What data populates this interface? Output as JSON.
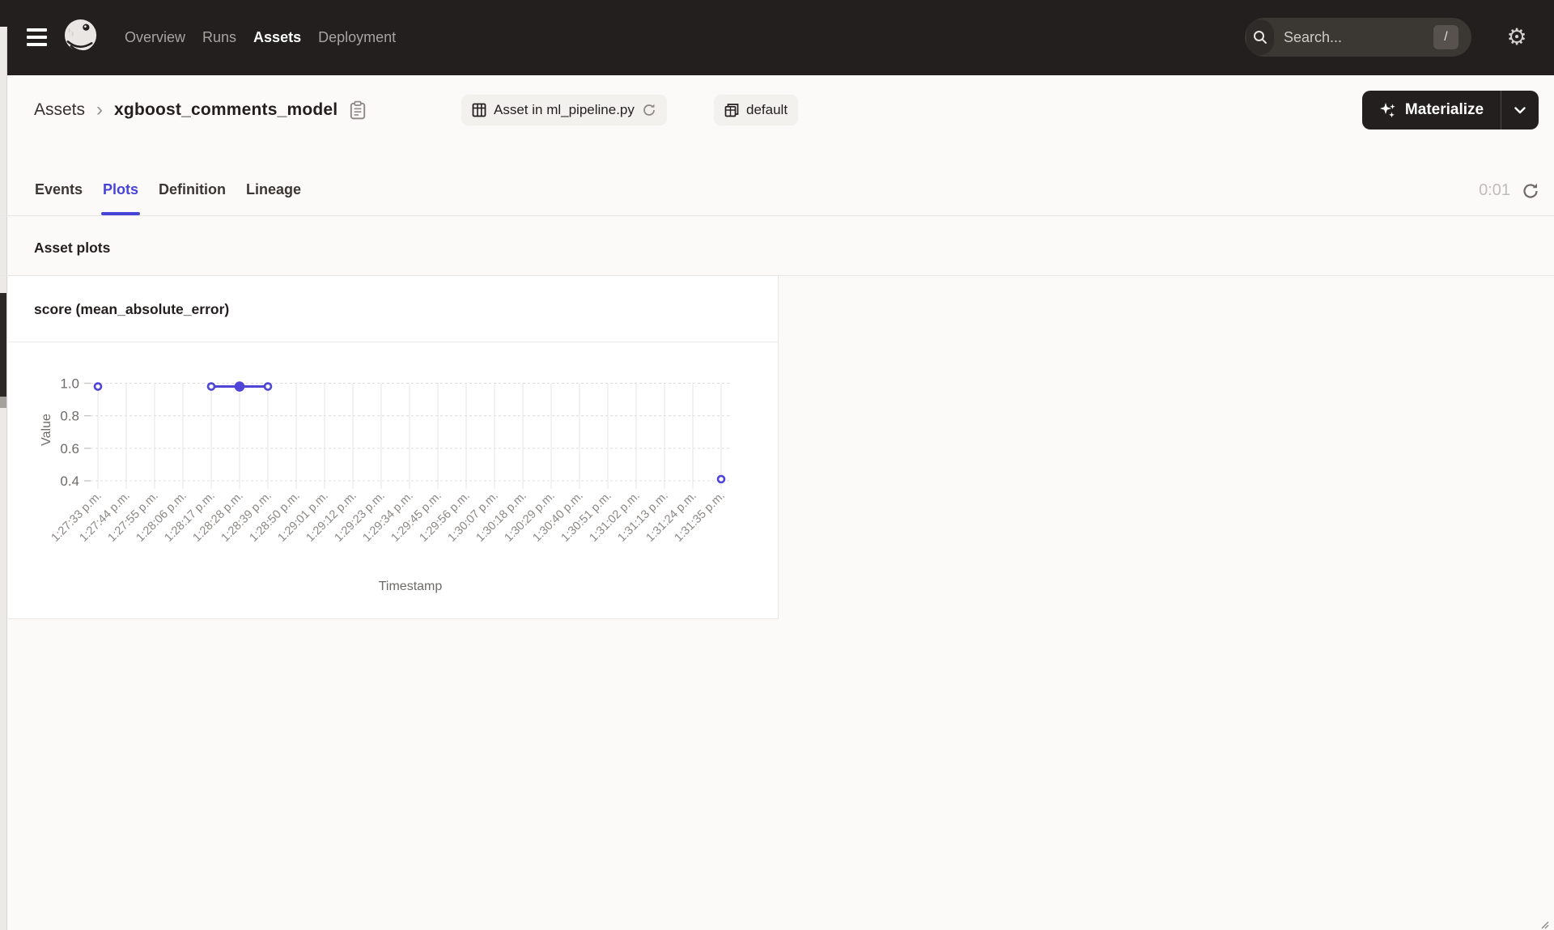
{
  "nav": {
    "items": [
      {
        "label": "Overview",
        "active": false
      },
      {
        "label": "Runs",
        "active": false
      },
      {
        "label": "Assets",
        "active": true
      },
      {
        "label": "Deployment",
        "active": false
      }
    ],
    "search": {
      "placeholder": "Search...",
      "shortcut_key": "/"
    }
  },
  "header": {
    "breadcrumb_root": "Assets",
    "breadcrumb_separator": "›",
    "title": "xgboost_comments_model",
    "asset_location_label": "Asset in ml_pipeline.py",
    "group_label": "default",
    "materialize_label": "Materialize"
  },
  "tabs": {
    "items": [
      {
        "label": "Events",
        "active": false
      },
      {
        "label": "Plots",
        "active": true
      },
      {
        "label": "Definition",
        "active": false
      },
      {
        "label": "Lineage",
        "active": false
      }
    ],
    "refresh_countdown": "0:01"
  },
  "section_title": "Asset plots",
  "colors": {
    "accent": "#4843D8",
    "nav_background": "#231F1E",
    "series_line": "#4F45D6"
  },
  "chart_data": {
    "type": "line",
    "title": "score (mean_absolute_error)",
    "xlabel": "Timestamp",
    "ylabel": "Value",
    "y_ticks": [
      "1.0",
      "0.8",
      "0.6",
      "0.4"
    ],
    "ylim": [
      0.4,
      1.0
    ],
    "grid": true,
    "x_ticks": [
      "1:27:33 p.m.",
      "1:27:44 p.m.",
      "1:27:55 p.m.",
      "1:28:06 p.m.",
      "1:28:17 p.m.",
      "1:28:28 p.m.",
      "1:28:39 p.m.",
      "1:28:50 p.m.",
      "1:29:01 p.m.",
      "1:29:12 p.m.",
      "1:29:23 p.m.",
      "1:29:34 p.m.",
      "1:29:45 p.m.",
      "1:29:56 p.m.",
      "1:30:07 p.m.",
      "1:30:18 p.m.",
      "1:30:29 p.m.",
      "1:30:40 p.m.",
      "1:30:51 p.m.",
      "1:31:02 p.m.",
      "1:31:13 p.m.",
      "1:31:24 p.m.",
      "1:31:35 p.m."
    ],
    "series": [
      {
        "name": "score (mean_absolute_error)",
        "color": "#4F45D6",
        "points": [
          {
            "x": "1:27:33 p.m.",
            "y": 0.98,
            "marker": "open"
          },
          {
            "x": "1:28:17 p.m.",
            "y": 0.98,
            "marker": "open"
          },
          {
            "x": "1:28:28 p.m.",
            "y": 0.98,
            "marker": "filled"
          },
          {
            "x": "1:28:39 p.m.",
            "y": 0.98,
            "marker": "open"
          },
          {
            "x": "1:31:35 p.m.",
            "y": 0.41,
            "marker": "open"
          }
        ],
        "segments": [
          [
            "1:28:17 p.m.",
            "1:28:28 p.m.",
            "1:28:39 p.m."
          ]
        ]
      }
    ]
  }
}
